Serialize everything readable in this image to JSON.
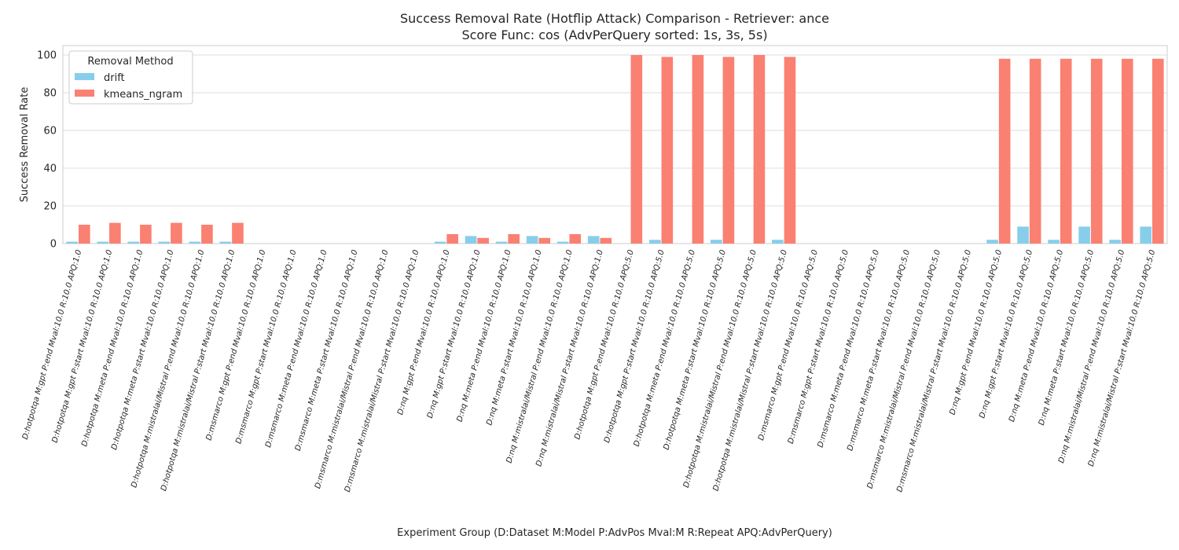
{
  "chart_data": {
    "type": "bar",
    "title": "Success Removal Rate (Hotflip Attack) Comparison - Retriever: ance",
    "subtitle": "Score Func: cos (AdvPerQuery sorted: 1s, 3s, 5s)",
    "xlabel": "Experiment Group (D:Dataset M:Model P:AdvPos Mval:M R:Repeat APQ:AdvPerQuery)",
    "ylabel": "Success Removal Rate",
    "ylim": [
      0,
      105
    ],
    "yticks": [
      0,
      20,
      40,
      60,
      80,
      100
    ],
    "grid": true,
    "legend": {
      "title": "Removal Method",
      "placement": "top-left"
    },
    "categories": [
      "D:hotpotqa M:gpt P:end Mval:10.0 R:10.0 APQ:1.0",
      "D:hotpotqa M:gpt P:start Mval:10.0 R:10.0 APQ:1.0",
      "D:hotpotqa M:meta P:end Mval:10.0 R:10.0 APQ:1.0",
      "D:hotpotqa M:meta P:start Mval:10.0 R:10.0 APQ:1.0",
      "D:hotpotqa M:mistralai/Mistral P:end Mval:10.0 R:10.0 APQ:1.0",
      "D:hotpotqa M:mistralai/Mistral P:start Mval:10.0 R:10.0 APQ:1.0",
      "D:msmarco M:gpt P:end Mval:10.0 R:10.0 APQ:1.0",
      "D:msmarco M:gpt P:start Mval:10.0 R:10.0 APQ:1.0",
      "D:msmarco M:meta P:end Mval:10.0 R:10.0 APQ:1.0",
      "D:msmarco M:meta P:start Mval:10.0 R:10.0 APQ:1.0",
      "D:msmarco M:mistralai/Mistral P:end Mval:10.0 R:10.0 APQ:1.0",
      "D:msmarco M:mistralai/Mistral P:start Mval:10.0 R:10.0 APQ:1.0",
      "D:nq M:gpt P:end Mval:10.0 R:10.0 APQ:1.0",
      "D:nq M:gpt P:start Mval:10.0 R:10.0 APQ:1.0",
      "D:nq M:meta P:end Mval:10.0 R:10.0 APQ:1.0",
      "D:nq M:meta P:start Mval:10.0 R:10.0 APQ:1.0",
      "D:nq M:mistralai/Mistral P:end Mval:10.0 R:10.0 APQ:1.0",
      "D:nq M:mistralai/Mistral P:start Mval:10.0 R:10.0 APQ:1.0",
      "D:hotpotqa M:gpt P:end Mval:10.0 R:10.0 APQ:5.0",
      "D:hotpotqa M:gpt P:start Mval:10.0 R:10.0 APQ:5.0",
      "D:hotpotqa M:meta P:end Mval:10.0 R:10.0 APQ:5.0",
      "D:hotpotqa M:meta P:start Mval:10.0 R:10.0 APQ:5.0",
      "D:hotpotqa M:mistralai/Mistral P:end Mval:10.0 R:10.0 APQ:5.0",
      "D:hotpotqa M:mistralai/Mistral P:start Mval:10.0 R:10.0 APQ:5.0",
      "D:msmarco M:gpt P:end Mval:10.0 R:10.0 APQ:5.0",
      "D:msmarco M:gpt P:start Mval:10.0 R:10.0 APQ:5.0",
      "D:msmarco M:meta P:end Mval:10.0 R:10.0 APQ:5.0",
      "D:msmarco M:meta P:start Mval:10.0 R:10.0 APQ:5.0",
      "D:msmarco M:mistralai/Mistral P:end Mval:10.0 R:10.0 APQ:5.0",
      "D:msmarco M:mistralai/Mistral P:start Mval:10.0 R:10.0 APQ:5.0",
      "D:nq M:gpt P:end Mval:10.0 R:10.0 APQ:5.0",
      "D:nq M:gpt P:start Mval:10.0 R:10.0 APQ:5.0",
      "D:nq M:meta P:end Mval:10.0 R:10.0 APQ:5.0",
      "D:nq M:meta P:start Mval:10.0 R:10.0 APQ:5.0",
      "D:nq M:mistralai/Mistral P:end Mval:10.0 R:10.0 APQ:5.0",
      "D:nq M:mistralai/Mistral P:start Mval:10.0 R:10.0 APQ:5.0"
    ],
    "series": [
      {
        "name": "drift",
        "color": "#87CEEB",
        "values": [
          1,
          1,
          1,
          1,
          1,
          1,
          0,
          0,
          0,
          0,
          0,
          0,
          1,
          4,
          1,
          4,
          1,
          4,
          0,
          2,
          0,
          2,
          0,
          2,
          0,
          0,
          0,
          0,
          0,
          0,
          2,
          9,
          2,
          9,
          2,
          9
        ]
      },
      {
        "name": "kmeans_ngram",
        "color": "#FA8072",
        "values": [
          10,
          11,
          10,
          11,
          10,
          11,
          0,
          0,
          0,
          0,
          0,
          0,
          5,
          3,
          5,
          3,
          5,
          3,
          100,
          99,
          100,
          99,
          100,
          99,
          0,
          0,
          0,
          0,
          0,
          0,
          98,
          98,
          98,
          98,
          98,
          98
        ]
      }
    ]
  }
}
